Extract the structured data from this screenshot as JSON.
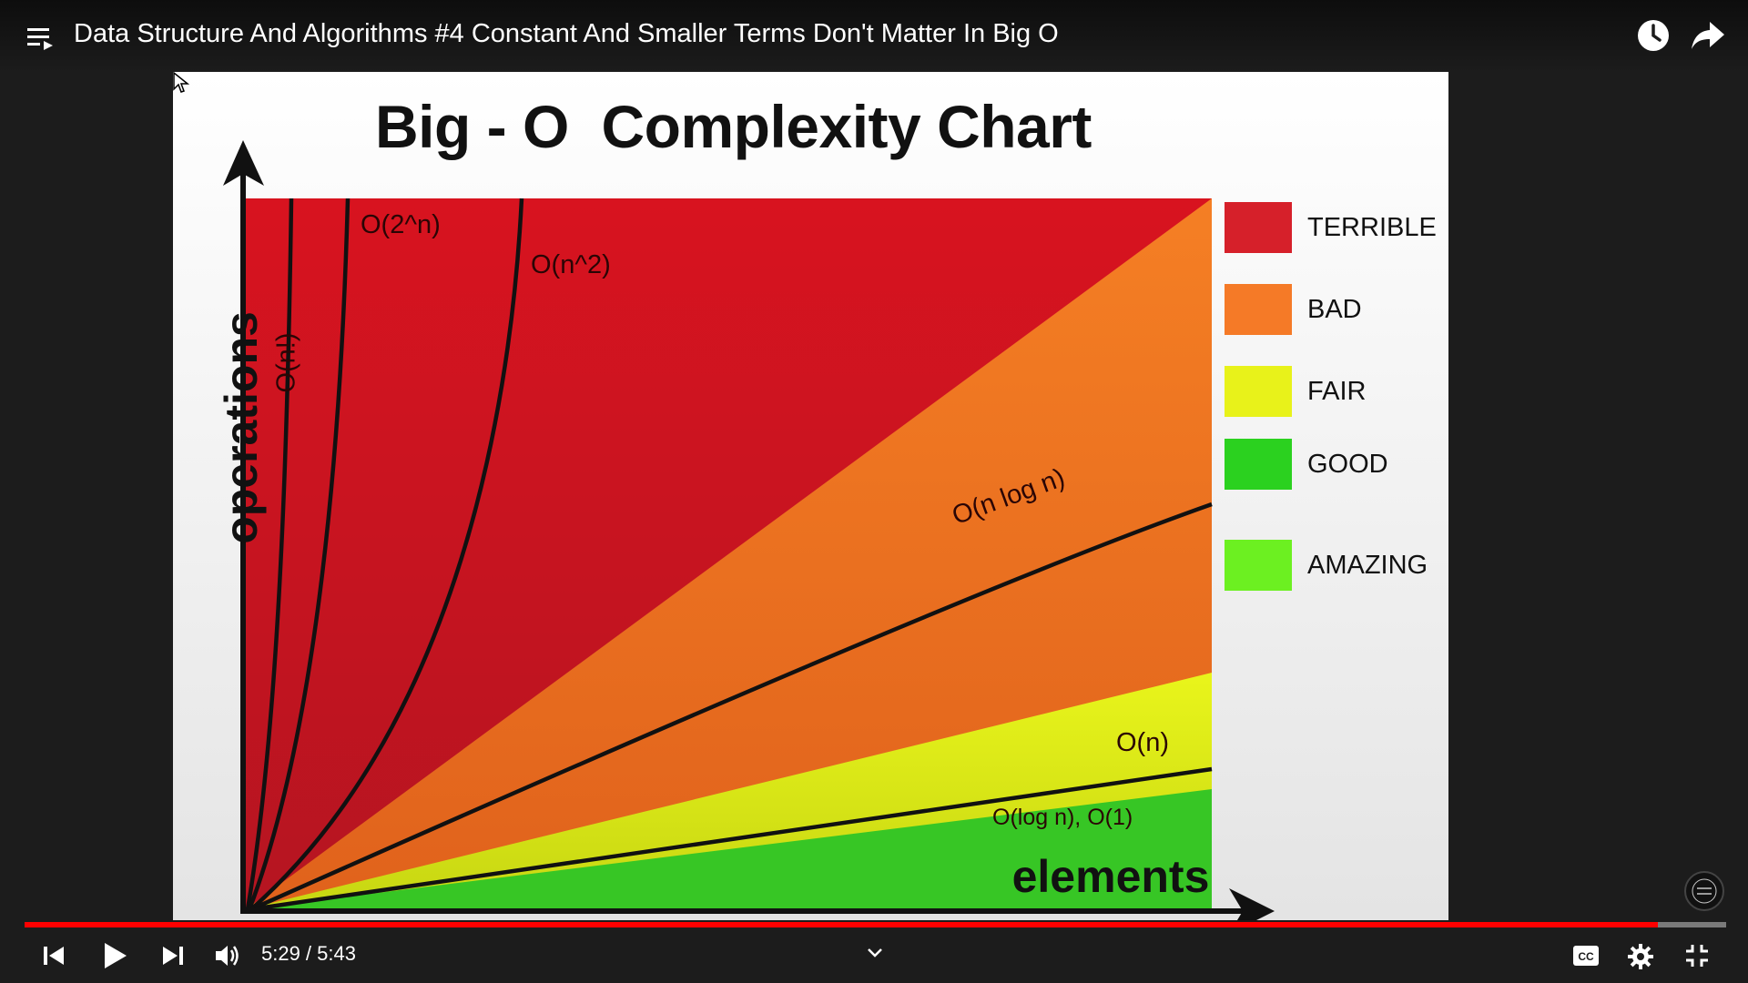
{
  "video": {
    "title": "Data Structure And Algorithms #4 Constant And Smaller Terms Don't Matter In Big O",
    "time_display": "5:29 / 5:43",
    "progress_fraction": 0.96
  },
  "chart": {
    "title": "Big - O  Complexity Chart",
    "ylabel": "operations",
    "xlabel": "elements",
    "curves": {
      "factorial": "O(n!)",
      "exponential": "O(2^n)",
      "quadratic": "O(n^2)",
      "nlogn": "O(n log n)",
      "linear": "O(n)",
      "log_const": "O(log n), O(1)"
    },
    "legend": [
      {
        "label": "TERRIBLE",
        "color": "#d6202a"
      },
      {
        "label": "BAD",
        "color": "#f57a27"
      },
      {
        "label": "FAIR",
        "color": "#e8f21a"
      },
      {
        "label": "GOOD",
        "color": "#2bd11f"
      },
      {
        "label": "AMAZING",
        "color": "#6cf021"
      }
    ]
  },
  "icons": [
    "menu-icon",
    "clock-icon",
    "share-icon",
    "previous-icon",
    "play-icon",
    "next-icon",
    "volume-icon",
    "chevron-down-icon",
    "captions-icon",
    "settings-icon",
    "exit-fullscreen-icon"
  ]
}
